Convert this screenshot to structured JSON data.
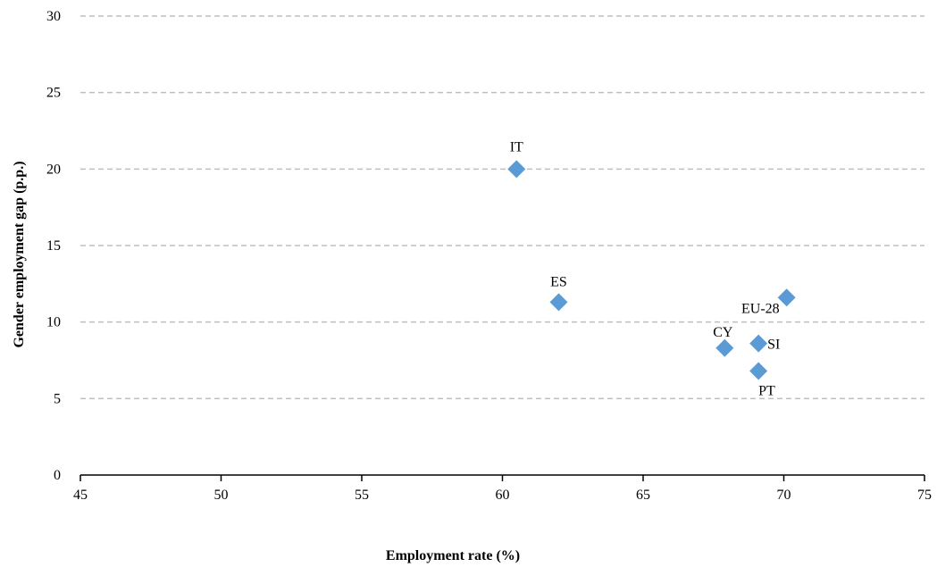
{
  "chart_data": {
    "type": "scatter",
    "title": "",
    "xlabel": "Employment rate (%)",
    "ylabel": "Gender employment gap (p.p.)",
    "xlim": [
      45,
      75
    ],
    "ylim": [
      0,
      30
    ],
    "xticks": [
      45,
      50,
      55,
      60,
      65,
      70,
      75
    ],
    "yticks": [
      0,
      5,
      10,
      15,
      20,
      25,
      30
    ],
    "grid": "horizontal dashed",
    "marker": "diamond",
    "color": "#5b9bd5",
    "points": [
      {
        "label": "IT",
        "x": 60.5,
        "y": 20.0
      },
      {
        "label": "ES",
        "x": 62.0,
        "y": 11.3
      },
      {
        "label": "EU-28",
        "x": 70.1,
        "y": 11.6
      },
      {
        "label": "CY",
        "x": 67.9,
        "y": 8.3
      },
      {
        "label": "SI",
        "x": 69.1,
        "y": 8.6
      },
      {
        "label": "PT",
        "x": 69.1,
        "y": 6.8
      }
    ]
  }
}
